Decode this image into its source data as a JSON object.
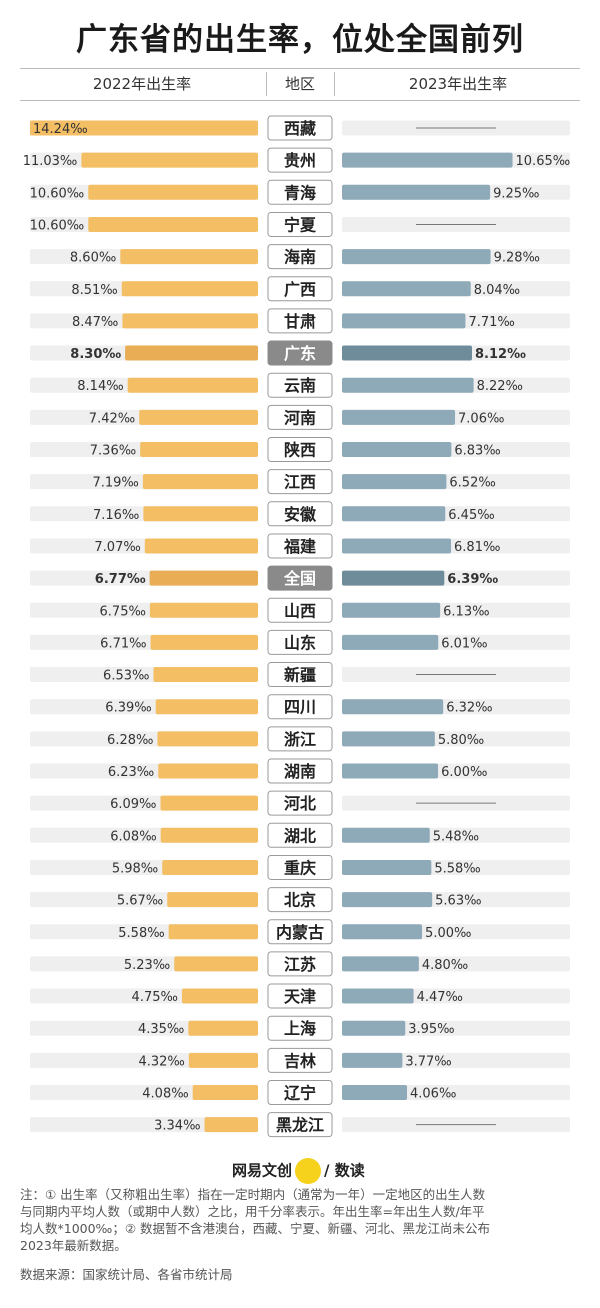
{
  "title": "广东省的出生率，位处全国前列",
  "headers": {
    "left": "2022年出生率",
    "middle": "地区",
    "right": "2023年出生率"
  },
  "colors": {
    "bar2022": "#f3be64",
    "bar2022_highlight": "#e8ad55",
    "bar2023": "#8ea9b7",
    "bar2023_highlight": "#6f8c9a",
    "track": "#efefef",
    "label_box_highlight": "#8a8a8a"
  },
  "chart_data": {
    "type": "bar",
    "unit": "‰",
    "xlim": [
      0,
      14.24
    ],
    "highlight": [
      "广东",
      "全国"
    ],
    "categories": [
      "西藏",
      "贵州",
      "青海",
      "宁夏",
      "海南",
      "广西",
      "甘肃",
      "广东",
      "云南",
      "河南",
      "陕西",
      "江西",
      "安徽",
      "福建",
      "全国",
      "山西",
      "山东",
      "新疆",
      "四川",
      "浙江",
      "湖南",
      "河北",
      "湖北",
      "重庆",
      "北京",
      "内蒙古",
      "江苏",
      "天津",
      "上海",
      "吉林",
      "辽宁",
      "黑龙江"
    ],
    "series": [
      {
        "name": "2022年出生率",
        "values": [
          14.24,
          11.03,
          10.6,
          10.6,
          8.6,
          8.51,
          8.47,
          8.3,
          8.14,
          7.42,
          7.36,
          7.19,
          7.16,
          7.07,
          6.77,
          6.75,
          6.71,
          6.53,
          6.39,
          6.28,
          6.23,
          6.09,
          6.08,
          5.98,
          5.67,
          5.58,
          5.23,
          4.75,
          4.35,
          4.32,
          4.08,
          3.34
        ],
        "labels": [
          "14.24‰",
          "11.03‰",
          "10.60‰",
          "10.60‰",
          "8.60‰",
          "8.51‰",
          "8.47‰",
          "8.30‰",
          "8.14‰",
          "7.42‰",
          "7.36‰",
          "7.19‰",
          "7.16‰",
          "7.07‰",
          "6.77‰",
          "6.75‰",
          "6.71‰",
          "6.53‰",
          "6.39‰",
          "6.28‰",
          "6.23‰",
          "6.09‰",
          "6.08‰",
          "5.98‰",
          "5.67‰",
          "5.58‰",
          "5.23‰",
          "4.75‰",
          "4.35‰",
          "4.32‰",
          "4.08‰",
          "3.34‰"
        ]
      },
      {
        "name": "2023年出生率",
        "values": [
          null,
          10.65,
          9.25,
          null,
          9.28,
          8.04,
          7.71,
          8.12,
          8.22,
          7.06,
          6.83,
          6.52,
          6.45,
          6.81,
          6.39,
          6.13,
          6.01,
          null,
          6.32,
          5.8,
          6.0,
          null,
          5.48,
          5.58,
          5.63,
          5.0,
          4.8,
          4.47,
          3.95,
          3.77,
          4.06,
          null
        ],
        "labels": [
          "",
          "10.65‰",
          "9.25‰",
          "",
          "9.28‰",
          "8.04‰",
          "7.71‰",
          "8.12‰",
          "8.22‰",
          "7.06‰",
          "6.83‰",
          "6.52‰",
          "6.45‰",
          "6.81‰",
          "6.39‰",
          "6.13‰",
          "6.01‰",
          "",
          "6.32‰",
          "5.80‰",
          "6.00‰",
          "",
          "5.48‰",
          "5.58‰",
          "5.63‰",
          "5.00‰",
          "4.80‰",
          "4.47‰",
          "3.95‰",
          "3.77‰",
          "4.06‰",
          ""
        ]
      }
    ]
  },
  "brand": {
    "left": "网易文创",
    "badge": "NetEase",
    "right": "/ 数读"
  },
  "notes": {
    "line1": "注：① 出生率（又称粗出生率）指在一定时期内（通常为一年）一定地区的出生人数",
    "line2": "与同期内平均人数（或期中人数）之比，用千分率表示。年出生率=年出生人数/年平",
    "line3": "均人数*1000‰；② 数据暂不含港澳台，西藏、宁夏、新疆、河北、黑龙江尚未公布",
    "line4": "2023年最新数据。",
    "source": "数据来源：国家统计局、各省市统计局"
  }
}
